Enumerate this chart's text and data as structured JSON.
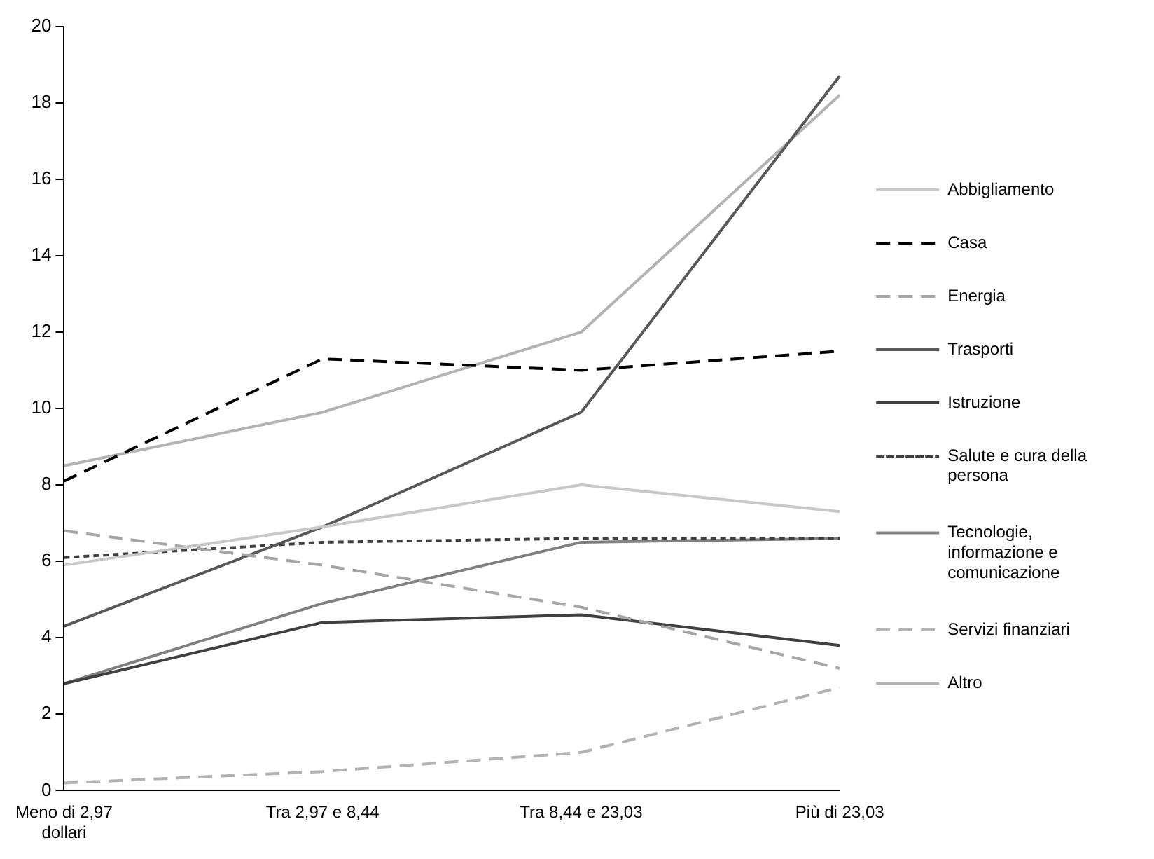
{
  "chart_data": {
    "type": "line",
    "categories": [
      "Meno di 2,97 dollari",
      "Tra 2,97 e 8,44",
      "Tra 8,44 e 23,03",
      "Più di 23,03"
    ],
    "ylim": [
      0,
      20
    ],
    "yticks": [
      0,
      2,
      4,
      6,
      8,
      10,
      12,
      14,
      16,
      18,
      20
    ],
    "grid": false,
    "legend": "right",
    "marker": "none",
    "series": [
      {
        "name": "Abbigliamento",
        "color": "#c8c8c8",
        "line_style": "solid",
        "values": [
          5.9,
          6.9,
          8.0,
          7.3
        ]
      },
      {
        "name": "Casa",
        "color": "#000000",
        "line_style": "dashed",
        "values": [
          8.1,
          11.3,
          11.0,
          11.5
        ]
      },
      {
        "name": "Energia",
        "color": "#a6a6a6",
        "line_style": "dashed",
        "values": [
          6.8,
          5.9,
          4.8,
          3.2
        ]
      },
      {
        "name": "Trasporti",
        "color": "#595959",
        "line_style": "solid",
        "values": [
          4.3,
          6.9,
          9.9,
          18.7
        ]
      },
      {
        "name": "Istruzione",
        "color": "#404040",
        "line_style": "solid",
        "values": [
          2.8,
          4.4,
          4.6,
          3.8
        ]
      },
      {
        "name": "Salute e cura della persona",
        "color": "#404040",
        "line_style": "dotted",
        "values": [
          6.1,
          6.5,
          6.6,
          6.6
        ]
      },
      {
        "name": "Tecnologie, informazione e comunicazione",
        "color": "#808080",
        "line_style": "solid",
        "values": [
          2.8,
          4.9,
          6.5,
          6.6
        ]
      },
      {
        "name": "Servizi finanziari",
        "color": "#b3b3b3",
        "line_style": "dashed",
        "values": [
          0.2,
          0.5,
          1.0,
          2.7
        ]
      },
      {
        "name": "Altro",
        "color": "#b3b3b3",
        "line_style": "solid",
        "values": [
          8.5,
          9.9,
          12.0,
          18.2
        ]
      }
    ]
  }
}
